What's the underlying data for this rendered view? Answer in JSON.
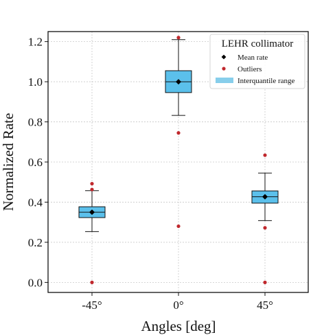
{
  "chart_data": {
    "type": "box",
    "title": "",
    "xlabel": "Angles [deg]",
    "ylabel": "Normalized Rate",
    "categories": [
      "-45°",
      "0°",
      "45°"
    ],
    "ylim": [
      -0.05,
      1.25
    ],
    "yticks": [
      0.0,
      0.2,
      0.4,
      0.6,
      0.8,
      1.0,
      1.2
    ],
    "ytick_labels": [
      "0.0",
      "0.2",
      "0.4",
      "0.6",
      "0.8",
      "1.0",
      "1.2"
    ],
    "grid": true,
    "legend": {
      "title": "LEHR collimator",
      "placement": "top-right",
      "entries": [
        {
          "key": "mean",
          "label": "Mean rate",
          "marker": "diamond",
          "color": "#000000"
        },
        {
          "key": "outliers",
          "label": "Outliers",
          "marker": "circle",
          "color": "#c0282d"
        },
        {
          "key": "iqr",
          "label": "Interquantile range",
          "marker": "patch",
          "color": "#87ceeb"
        }
      ]
    },
    "boxes": [
      {
        "category": "-45°",
        "whisker_low": 0.253,
        "q1": 0.323,
        "median": 0.35,
        "q3": 0.377,
        "whisker_high": 0.457,
        "mean": 0.35,
        "outliers": [
          0.0,
          0.463,
          0.492
        ]
      },
      {
        "category": "0°",
        "whisker_low": 0.832,
        "q1": 0.946,
        "median": 1.0,
        "q3": 1.055,
        "whisker_high": 1.21,
        "mean": 1.0,
        "outliers": [
          0.28,
          0.745,
          1.22
        ]
      },
      {
        "category": "45°",
        "whisker_low": 0.308,
        "q1": 0.395,
        "median": 0.427,
        "q3": 0.456,
        "whisker_high": 0.545,
        "mean": 0.427,
        "outliers": [
          0.0,
          0.272,
          0.634
        ]
      }
    ],
    "colors": {
      "box_fill": "#5bc0eb",
      "legend_patch": "#87ceeb",
      "outlier": "#c0282d",
      "mean": "#000000",
      "line": "#111111",
      "grid": "#c8c8c8"
    }
  }
}
